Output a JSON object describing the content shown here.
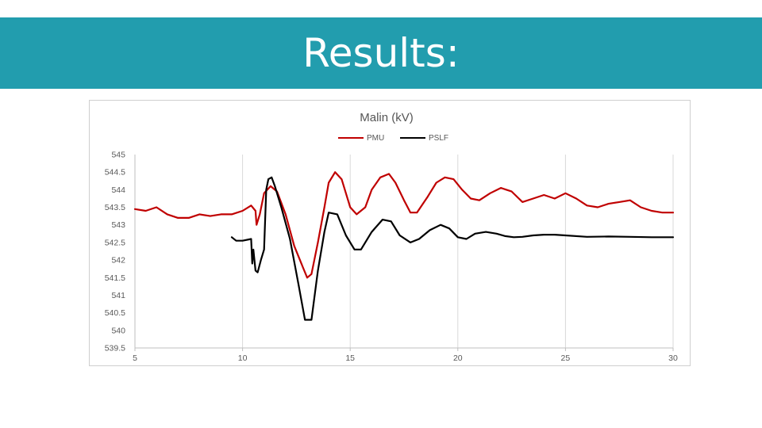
{
  "slide": {
    "title": "Results:"
  },
  "colors": {
    "band": "#229dae",
    "pmu": "#c00000",
    "pslf": "#000000",
    "grid": "#d9d9d9"
  },
  "chart_data": {
    "type": "line",
    "title": "Malin (kV)",
    "xlabel": "",
    "ylabel": "",
    "xlim": [
      5,
      30
    ],
    "ylim": [
      539.5,
      545
    ],
    "xticks": [
      5,
      10,
      15,
      20,
      25,
      30
    ],
    "yticks": [
      539.5,
      540,
      540.5,
      541,
      541.5,
      542,
      542.5,
      543,
      543.5,
      544,
      544.5,
      545
    ],
    "xtick_labels": [
      "5",
      "10",
      "15",
      "20",
      "25",
      "30"
    ],
    "ytick_labels": [
      "539.5",
      "540",
      "540.5",
      "541",
      "541.5",
      "542",
      "542.5",
      "543",
      "543.5",
      "544",
      "544.5",
      "545"
    ],
    "grid": "vertical",
    "legend": "top-center",
    "series": [
      {
        "name": "PMU",
        "color": "#c00000",
        "x": [
          5,
          5.5,
          6,
          6.5,
          7,
          7.5,
          8,
          8.5,
          9,
          9.5,
          10,
          10.4,
          10.6,
          10.65,
          10.8,
          11,
          11.3,
          11.6,
          12,
          12.4,
          12.8,
          13,
          13.2,
          13.5,
          13.8,
          14,
          14.3,
          14.6,
          15,
          15.3,
          15.7,
          16,
          16.4,
          16.8,
          17.1,
          17.5,
          17.8,
          18.1,
          18.6,
          19,
          19.4,
          19.8,
          20.2,
          20.6,
          21,
          21.5,
          22,
          22.5,
          23,
          23.5,
          24,
          24.5,
          25,
          25.5,
          26,
          26.5,
          27,
          27.5,
          28,
          28.5,
          29,
          29.5,
          30
        ],
        "values": [
          543.45,
          543.4,
          543.5,
          543.3,
          543.2,
          543.2,
          543.3,
          543.25,
          543.3,
          543.3,
          543.4,
          543.55,
          543.4,
          543.0,
          543.3,
          543.9,
          544.1,
          543.95,
          543.3,
          542.4,
          541.8,
          541.5,
          541.6,
          542.5,
          543.5,
          544.2,
          544.5,
          544.3,
          543.5,
          543.3,
          543.5,
          544.0,
          544.35,
          544.45,
          544.2,
          543.7,
          543.35,
          543.35,
          543.8,
          544.2,
          544.35,
          544.3,
          544.0,
          543.75,
          543.7,
          543.9,
          544.05,
          543.95,
          543.65,
          543.75,
          543.85,
          543.75,
          543.9,
          543.75,
          543.55,
          543.5,
          543.6,
          543.65,
          543.7,
          543.5,
          543.4,
          543.35,
          543.35
        ]
      },
      {
        "name": "PSLF",
        "color": "#000000",
        "x": [
          9.5,
          9.7,
          10,
          10.4,
          10.45,
          10.5,
          10.6,
          10.7,
          10.85,
          11.0,
          11.1,
          11.2,
          11.35,
          11.5,
          11.8,
          12.2,
          12.6,
          12.9,
          13.2,
          13.5,
          13.8,
          14.0,
          14.4,
          14.8,
          15.2,
          15.5,
          16.0,
          16.5,
          16.9,
          17.3,
          17.8,
          18.2,
          18.7,
          19.2,
          19.6,
          20.0,
          20.4,
          20.8,
          21.3,
          21.8,
          22.2,
          22.6,
          23.0,
          23.5,
          24.0,
          24.5,
          25,
          26,
          27,
          28,
          29,
          30
        ],
        "values": [
          542.65,
          542.55,
          542.55,
          542.6,
          541.9,
          542.3,
          541.7,
          541.65,
          542.0,
          542.3,
          544.0,
          544.3,
          544.35,
          544.1,
          543.5,
          542.6,
          541.3,
          540.3,
          540.3,
          541.7,
          542.8,
          543.35,
          543.3,
          542.7,
          542.3,
          542.3,
          542.8,
          543.15,
          543.1,
          542.7,
          542.5,
          542.6,
          542.85,
          543.0,
          542.9,
          542.65,
          542.6,
          542.75,
          542.8,
          542.75,
          542.68,
          542.65,
          542.66,
          542.7,
          542.72,
          542.72,
          542.7,
          542.66,
          542.67,
          542.66,
          542.65,
          542.65
        ]
      }
    ]
  }
}
